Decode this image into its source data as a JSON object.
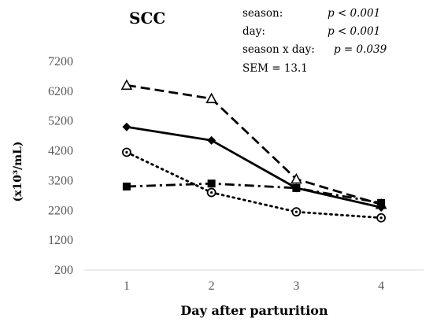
{
  "chart_data": {
    "type": "line",
    "title": "SCC",
    "xlabel": "Day after parturition",
    "ylabel": "(x10³/mL)",
    "categories": [
      "1",
      "2",
      "3",
      "4"
    ],
    "yticks": [
      "200",
      "1200",
      "2200",
      "3200",
      "4200",
      "5200",
      "6200",
      "7200"
    ],
    "ylim": [
      200,
      7200
    ],
    "grid": false,
    "stats": [
      {
        "label": "season:",
        "value": "p < 0.001"
      },
      {
        "label": "day:",
        "value": "p < 0.001"
      },
      {
        "label": "season x day:",
        "value": "p = 0.039"
      },
      {
        "label": "SEM = 13.1",
        "value": ""
      }
    ],
    "series": [
      {
        "values": [
          6400,
          5950,
          3250,
          2400
        ],
        "line": "dashed",
        "marker": "open-triangle"
      },
      {
        "values": [
          5000,
          4550,
          2950,
          2300
        ],
        "line": "solid",
        "marker": "filled-diamond"
      },
      {
        "values": [
          4150,
          2800,
          2150,
          1950
        ],
        "line": "dotted",
        "marker": "open-circle-dot"
      },
      {
        "values": [
          3000,
          3100,
          2950,
          2450
        ],
        "line": "dash-dot",
        "marker": "filled-square"
      }
    ]
  }
}
